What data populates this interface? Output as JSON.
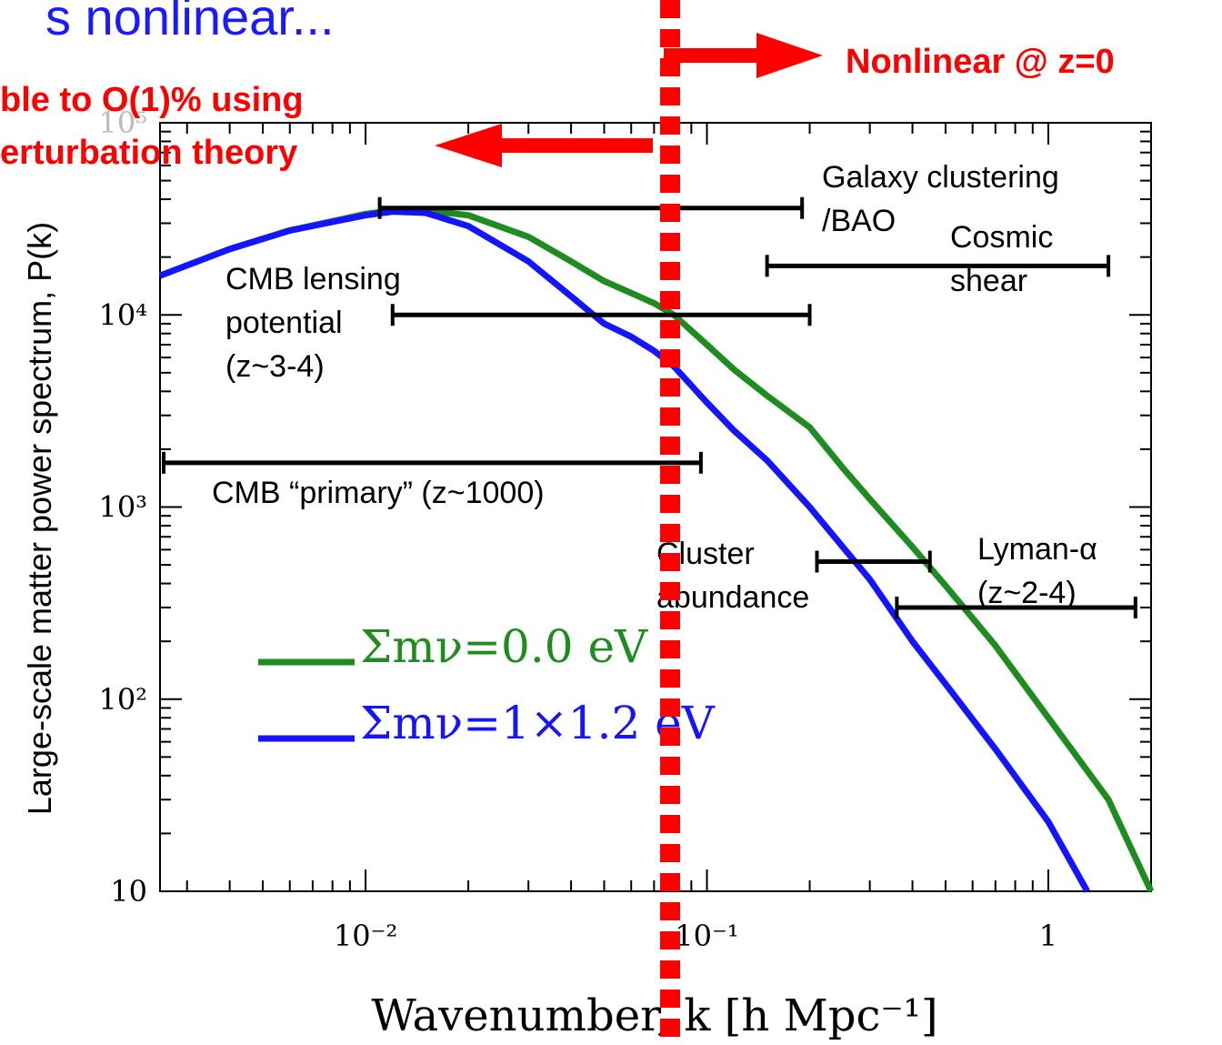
{
  "header": {
    "title_fragment": "s nonlinear...",
    "nonlinear_label": "Nonlinear @ z=0",
    "perturbation_label_line1": "ble to O(1)% using",
    "perturbation_label_line2": "erturbation theory"
  },
  "colors": {
    "accent_red": "#ff0000",
    "title_blue": "#1a1aff",
    "green_series": "#1e8c1e",
    "blue_series": "#1414ff",
    "probe_bars": "#000000"
  },
  "chart_data": {
    "type": "line",
    "title": "",
    "xlabel": "Wavenumber, k [h Mpc⁻¹]",
    "ylabel": "Large-scale matter power spectrum, P(k)",
    "x_scale": "log",
    "y_scale": "log",
    "xlim": [
      0.0025,
      2.0
    ],
    "ylim": [
      10,
      100000
    ],
    "x_ticks": [
      {
        "value": 0.01,
        "label": "10⁻²"
      },
      {
        "value": 0.1,
        "label": "10⁻¹"
      },
      {
        "value": 1,
        "label": "1"
      }
    ],
    "y_ticks": [
      {
        "value": 10,
        "label": "10"
      },
      {
        "value": 100,
        "label": "10²"
      },
      {
        "value": 1000,
        "label": "10³"
      },
      {
        "value": 10000,
        "label": "10⁴"
      },
      {
        "value": 100000,
        "label": "10⁵"
      }
    ],
    "nonlinear_scale_k": 0.078,
    "legend_position": "center-left",
    "series": [
      {
        "name": "Σmν=0.0 eV",
        "color": "#1e8c1e",
        "points": [
          [
            0.0025,
            16000
          ],
          [
            0.004,
            22000
          ],
          [
            0.006,
            27500
          ],
          [
            0.01,
            33500
          ],
          [
            0.012,
            35000
          ],
          [
            0.015,
            35000
          ],
          [
            0.02,
            33000
          ],
          [
            0.03,
            25500
          ],
          [
            0.04,
            19000
          ],
          [
            0.05,
            15000
          ],
          [
            0.06,
            13000
          ],
          [
            0.07,
            11500
          ],
          [
            0.08,
            10000
          ],
          [
            0.1,
            7000
          ],
          [
            0.12,
            5200
          ],
          [
            0.15,
            3800
          ],
          [
            0.2,
            2600
          ],
          [
            0.25,
            1600
          ],
          [
            0.3,
            1100
          ],
          [
            0.4,
            620
          ],
          [
            0.5,
            390
          ],
          [
            0.7,
            190
          ],
          [
            1.0,
            80
          ],
          [
            1.5,
            30
          ],
          [
            2.0,
            10
          ]
        ]
      },
      {
        "name": "Σmν=1×1.2 eV",
        "color": "#1414ff",
        "points": [
          [
            0.0025,
            16000
          ],
          [
            0.004,
            22000
          ],
          [
            0.006,
            27500
          ],
          [
            0.01,
            33000
          ],
          [
            0.012,
            34500
          ],
          [
            0.015,
            34000
          ],
          [
            0.02,
            29000
          ],
          [
            0.03,
            19000
          ],
          [
            0.04,
            12500
          ],
          [
            0.05,
            9000
          ],
          [
            0.06,
            7700
          ],
          [
            0.07,
            6500
          ],
          [
            0.08,
            5400
          ],
          [
            0.1,
            3500
          ],
          [
            0.12,
            2500
          ],
          [
            0.15,
            1750
          ],
          [
            0.2,
            1000
          ],
          [
            0.25,
            620
          ],
          [
            0.3,
            420
          ],
          [
            0.4,
            200
          ],
          [
            0.5,
            120
          ],
          [
            0.7,
            55
          ],
          [
            1.0,
            23
          ],
          [
            1.3,
            10
          ]
        ]
      }
    ],
    "probes": [
      {
        "label_lines": [
          "Galaxy clustering",
          "/BAO"
        ],
        "k_min": 0.011,
        "k_max": 0.19,
        "level": 36000
      },
      {
        "label_lines": [
          "Cosmic",
          "shear"
        ],
        "k_min": 0.15,
        "k_max": 1.5,
        "level": 18000
      },
      {
        "label_lines": [
          "CMB lensing",
          "potential",
          "(z~3-4)"
        ],
        "k_min": 0.012,
        "k_max": 0.2,
        "level": 10000
      },
      {
        "label_lines": [
          "CMB “primary” (z~1000)"
        ],
        "k_min": 0.0025,
        "k_max": 0.096,
        "level": 1700
      },
      {
        "label_lines": [
          "Cluster",
          "abundance"
        ],
        "k_min": 0.21,
        "k_max": 0.45,
        "level": 520
      },
      {
        "label_lines": [
          "Lyman-α",
          "(z~2-4)"
        ],
        "k_min": 0.36,
        "k_max": 1.8,
        "level": 300
      }
    ]
  }
}
